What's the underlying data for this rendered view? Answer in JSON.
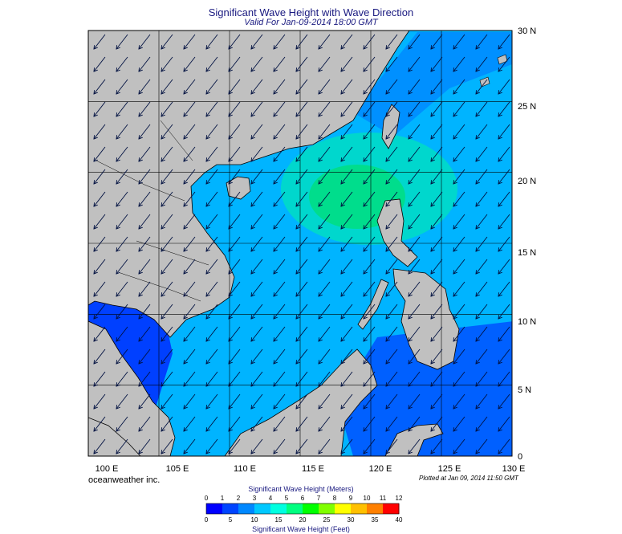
{
  "title": "Significant Wave Height with Wave Direction",
  "subtitle": "Valid For Jan-09-2014 18:00 GMT",
  "brand": "oceanweather inc.",
  "plotted": "Plotted at Jan 09, 2014 11:50 GMT",
  "map": {
    "lon_range": [
      100,
      130
    ],
    "lat_range": [
      0,
      30
    ],
    "lon_labels": [
      "100 E",
      "105 E",
      "110 E",
      "115 E",
      "120 E",
      "125 E",
      "130 E"
    ],
    "lat_labels": [
      "30 N",
      "25 N",
      "20 N",
      "15 N",
      "10 N",
      "5 N",
      "0"
    ],
    "land_color": "#c0c0c0",
    "wave_direction": "from northeast"
  },
  "colorbar": {
    "meters_title": "Significant Wave Height (Meters)",
    "feet_title": "Significant Wave Height (Feet)",
    "meters_ticks": [
      "0",
      "1",
      "2",
      "3",
      "4",
      "5",
      "6",
      "7",
      "8",
      "9",
      "10",
      "11",
      "12"
    ],
    "feet_ticks": [
      "0",
      "5",
      "10",
      "15",
      "20",
      "25",
      "30",
      "35",
      "40"
    ],
    "colors": [
      "#0000ff",
      "#0044ff",
      "#0088ff",
      "#00c8ff",
      "#00ffe0",
      "#00ff80",
      "#00ff00",
      "#80ff00",
      "#ffff00",
      "#ffc000",
      "#ff8000",
      "#ff0000"
    ]
  }
}
